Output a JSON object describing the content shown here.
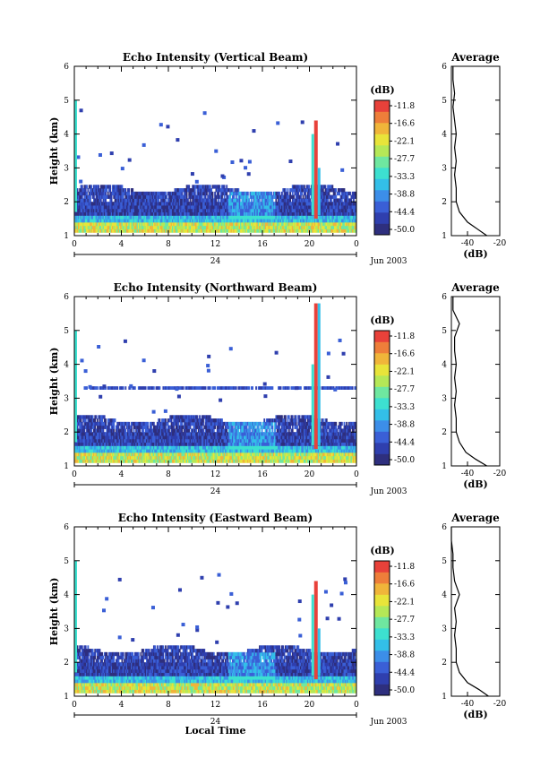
{
  "chart_data": [
    {
      "type": "heatmap",
      "title": "Echo Intensity (Vertical Beam)",
      "ylabel": "Height (km)",
      "xlabel": "",
      "x_ticks": [
        "0",
        "4",
        "8",
        "12",
        "16",
        "20",
        "0"
      ],
      "y_ticks": [
        "1",
        "2",
        "3",
        "4",
        "5",
        "6"
      ],
      "xlim": [
        0,
        24
      ],
      "ylim": [
        1,
        6
      ],
      "day_label": "24",
      "month_label": "Jun 2003",
      "colorbar": {
        "unit": "(dB)",
        "labels": [
          "-11.8",
          "-16.6",
          "-22.1",
          "-27.7",
          "-33.3",
          "-38.8",
          "-44.4",
          "-50.0"
        ]
      },
      "average": {
        "title": "Average",
        "xlabel": "(dB)",
        "x_ticks": [
          "-40",
          "-20"
        ],
        "y_ticks": [
          "1",
          "2",
          "3",
          "4",
          "5",
          "6"
        ],
        "profile": [
          {
            "h": 1.0,
            "db": -28
          },
          {
            "h": 1.2,
            "db": -34
          },
          {
            "h": 1.4,
            "db": -40
          },
          {
            "h": 1.7,
            "db": -45
          },
          {
            "h": 2.0,
            "db": -47
          },
          {
            "h": 2.4,
            "db": -47
          },
          {
            "h": 2.8,
            "db": -48
          },
          {
            "h": 3.2,
            "db": -47
          },
          {
            "h": 3.6,
            "db": -48
          },
          {
            "h": 4.0,
            "db": -47
          },
          {
            "h": 4.4,
            "db": -48
          },
          {
            "h": 4.8,
            "db": -49
          },
          {
            "h": 5.2,
            "db": -48
          },
          {
            "h": 5.6,
            "db": -49
          },
          {
            "h": 6.0,
            "db": -49
          }
        ]
      }
    },
    {
      "type": "heatmap",
      "title": "Echo Intensity (Northward Beam)",
      "ylabel": "Height (km)",
      "xlabel": "",
      "x_ticks": [
        "0",
        "4",
        "8",
        "12",
        "16",
        "20",
        "0"
      ],
      "y_ticks": [
        "1",
        "2",
        "3",
        "4",
        "5",
        "6"
      ],
      "xlim": [
        0,
        24
      ],
      "ylim": [
        1,
        6
      ],
      "day_label": "24",
      "month_label": "Jun 2003",
      "colorbar": {
        "unit": "(dB)",
        "labels": [
          "-11.8",
          "-16.6",
          "-22.1",
          "-27.7",
          "-33.3",
          "-38.8",
          "-44.4",
          "-50.0"
        ]
      },
      "average": {
        "title": "Average",
        "xlabel": "(dB)",
        "x_ticks": [
          "-40",
          "-20"
        ],
        "y_ticks": [
          "1",
          "2",
          "3",
          "4",
          "5",
          "6"
        ],
        "profile": [
          {
            "h": 1.0,
            "db": -28
          },
          {
            "h": 1.2,
            "db": -35
          },
          {
            "h": 1.4,
            "db": -41
          },
          {
            "h": 1.7,
            "db": -45
          },
          {
            "h": 2.0,
            "db": -47
          },
          {
            "h": 2.4,
            "db": -47
          },
          {
            "h": 2.8,
            "db": -48
          },
          {
            "h": 3.2,
            "db": -47
          },
          {
            "h": 3.6,
            "db": -48
          },
          {
            "h": 4.0,
            "db": -47
          },
          {
            "h": 4.4,
            "db": -48
          },
          {
            "h": 4.8,
            "db": -48
          },
          {
            "h": 5.2,
            "db": -45
          },
          {
            "h": 5.6,
            "db": -49
          },
          {
            "h": 6.0,
            "db": -49
          }
        ]
      }
    },
    {
      "type": "heatmap",
      "title": "Echo Intensity (Eastward Beam)",
      "ylabel": "Height (km)",
      "xlabel": "Local Time",
      "x_ticks": [
        "0",
        "4",
        "8",
        "12",
        "16",
        "20",
        "0"
      ],
      "y_ticks": [
        "1",
        "2",
        "3",
        "4",
        "5",
        "6"
      ],
      "xlim": [
        0,
        24
      ],
      "ylim": [
        1,
        6
      ],
      "day_label": "24",
      "month_label": "Jun 2003",
      "colorbar": {
        "unit": "(dB)",
        "labels": [
          "-11.8",
          "-16.6",
          "-22.1",
          "-27.7",
          "-33.3",
          "-38.8",
          "-44.4",
          "-50.0"
        ]
      },
      "average": {
        "title": "Average",
        "xlabel": "(dB)",
        "x_ticks": [
          "-40",
          "-20"
        ],
        "y_ticks": [
          "1",
          "2",
          "3",
          "4",
          "5",
          "6"
        ],
        "profile": [
          {
            "h": 1.0,
            "db": -27
          },
          {
            "h": 1.2,
            "db": -33
          },
          {
            "h": 1.4,
            "db": -40
          },
          {
            "h": 1.7,
            "db": -45
          },
          {
            "h": 2.0,
            "db": -47
          },
          {
            "h": 2.4,
            "db": -47
          },
          {
            "h": 2.8,
            "db": -48
          },
          {
            "h": 3.2,
            "db": -47
          },
          {
            "h": 3.6,
            "db": -48
          },
          {
            "h": 4.0,
            "db": -45
          },
          {
            "h": 4.4,
            "db": -48
          },
          {
            "h": 4.8,
            "db": -49
          },
          {
            "h": 5.2,
            "db": -49
          },
          {
            "h": 5.6,
            "db": -50
          },
          {
            "h": 6.0,
            "db": -50
          }
        ]
      }
    }
  ],
  "colors": {
    "scale": [
      "#2e2f7e",
      "#2f3fae",
      "#3a5fd6",
      "#3c8ee8",
      "#33bfe8",
      "#3de0d0",
      "#6fe7a0",
      "#b5e857",
      "#e8e43a",
      "#f0b53a",
      "#ee7e3a",
      "#e8413a"
    ]
  }
}
